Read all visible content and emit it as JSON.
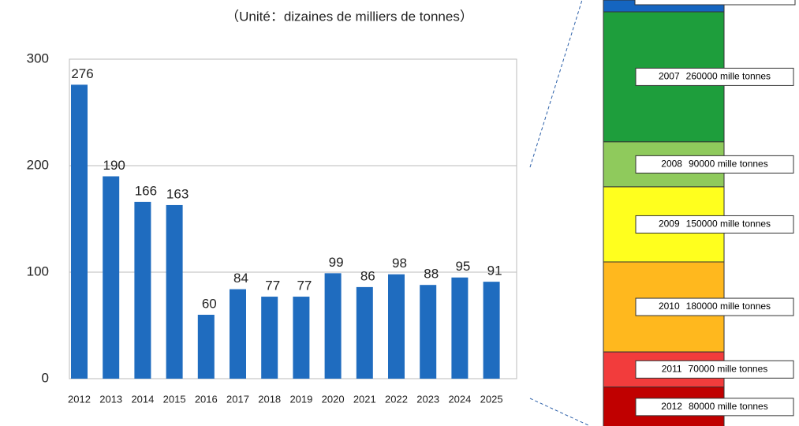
{
  "chart_data": [
    {
      "type": "bar",
      "subtitle": "（Unité：dizaines de milliers de tonnes）",
      "categories": [
        "2012",
        "2013",
        "2014",
        "2015",
        "2016",
        "2017",
        "2018",
        "2019",
        "2020",
        "2021",
        "2022",
        "2023",
        "2024",
        "2025"
      ],
      "values": [
        276,
        190,
        166,
        163,
        60,
        84,
        77,
        77,
        99,
        86,
        98,
        88,
        95,
        91
      ],
      "color": "#1f6cbf",
      "ylim": [
        0,
        300
      ],
      "yticks": [
        0,
        100,
        200,
        300
      ],
      "grid": true
    },
    {
      "type": "stacked_column",
      "categories": [
        "2007",
        "2008",
        "2009",
        "2010",
        "2011",
        "2012"
      ],
      "values": [
        260000,
        90000,
        150000,
        180000,
        70000,
        80000
      ],
      "value_labels": [
        "260000 mille tonnes",
        "90000 mille tonnes",
        "150000 mille tonnes",
        "180000 mille tonnes",
        "70000 mille tonnes",
        "80000 mille tonnes"
      ],
      "colors": [
        "#1e9e3c",
        "#8fca5c",
        "#ffff1e",
        "#ffb81e",
        "#f23c3c",
        "#c00000"
      ]
    }
  ]
}
